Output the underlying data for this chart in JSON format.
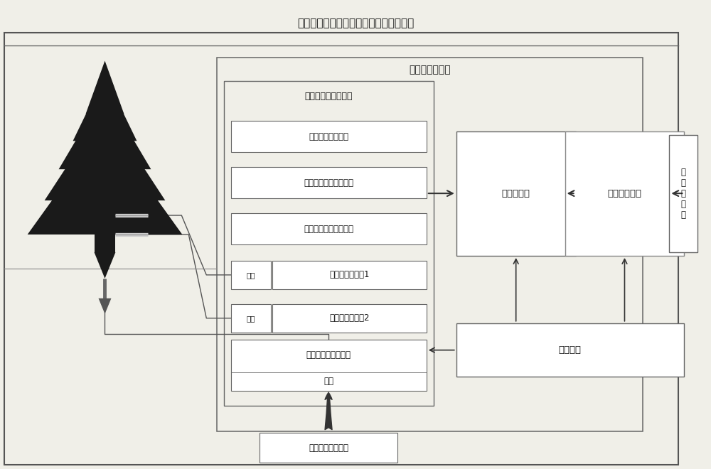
{
  "title": "一种活立木电能及其环境参数测量的装置",
  "main_box_label": "远程数据采集器",
  "sensor_box_label": "传感器及其接口模块",
  "sensor_boxes": [
    "空气温度测量电路",
    "空气相对湿度测量电路",
    "环境光照强度测量电路"
  ],
  "iface1_label": "接口",
  "circ1_label": "电势差测量电路1",
  "iface2_label": "接口",
  "circ2_label": "电势差测量电路2",
  "soil_box_top": "土壤温湿度测量电路",
  "soil_box_bottom": "接口",
  "mcu_label": "单片机模块",
  "wireless_label": "无线通信模块",
  "power_label": "电源模块",
  "remote_server_label": "远\n程\n服\n务\n器",
  "soil_sensor_label": "土壤温湿度传感器",
  "bg_color": "#f0efe8",
  "box_bg": "#ffffff",
  "box_border": "#555555",
  "text_color": "#111111",
  "arrow_color": "#333333",
  "tree_color": "#1a1a1a",
  "wire_color": "#555555"
}
